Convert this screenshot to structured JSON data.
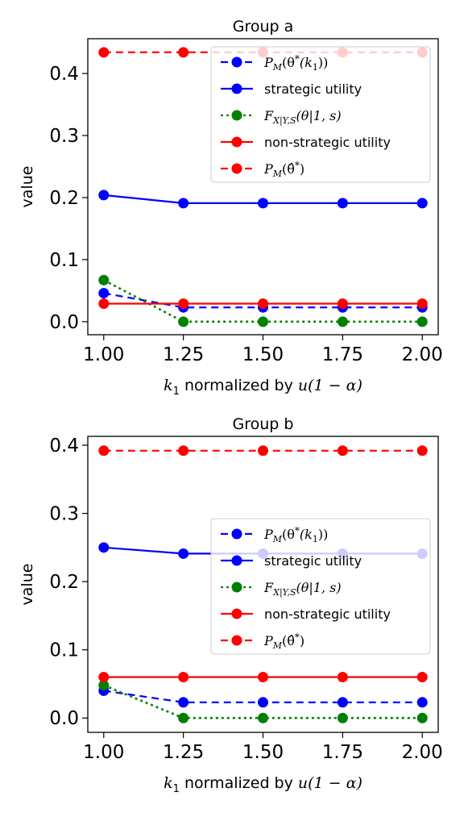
{
  "chart_data": [
    {
      "type": "line",
      "title": "Group a",
      "xlabel_prefix": "k",
      "xlabel_sub": "1",
      "xlabel_text": " normalized by ",
      "xlabel_math": "u(1 − α)",
      "ylabel": "value",
      "x": [
        1.0,
        1.25,
        1.5,
        1.75,
        2.0
      ],
      "x_tick_labels": [
        "1.00",
        "1.25",
        "1.50",
        "1.75",
        "2.00"
      ],
      "y_ticks": [
        0.0,
        0.1,
        0.2,
        0.3,
        0.4
      ],
      "y_tick_labels": [
        "0.0",
        "0.1",
        "0.2",
        "0.3",
        "0.4"
      ],
      "xlim": [
        0.95,
        2.05
      ],
      "ylim": [
        -0.021,
        0.456
      ],
      "legend_position": "upper-right",
      "series": [
        {
          "name": "P_M(θ*(k1))",
          "color": "#0000ff",
          "style": "dashed",
          "values": [
            0.046,
            0.023,
            0.023,
            0.023,
            0.023
          ]
        },
        {
          "name": "strategic utility",
          "color": "#0000ff",
          "style": "solid",
          "values": [
            0.204,
            0.191,
            0.191,
            0.191,
            0.191
          ]
        },
        {
          "name": "F_X|Y,S(θ|1,s)",
          "color": "#008000",
          "style": "dotted",
          "values": [
            0.067,
            0.0,
            0.0,
            0.0,
            0.0
          ]
        },
        {
          "name": "non-strategic utility",
          "color": "#ff0000",
          "style": "solid",
          "values": [
            0.029,
            0.029,
            0.029,
            0.029,
            0.029
          ]
        },
        {
          "name": "P_M(θ̂*)",
          "color": "#ff0000",
          "style": "dashed",
          "values": [
            0.434,
            0.434,
            0.434,
            0.434,
            0.434
          ]
        }
      ]
    },
    {
      "type": "line",
      "title": "Group b",
      "xlabel_prefix": "k",
      "xlabel_sub": "1",
      "xlabel_text": " normalized by ",
      "xlabel_math": "u(1 − α)",
      "ylabel": "value",
      "x": [
        1.0,
        1.25,
        1.5,
        1.75,
        2.0
      ],
      "x_tick_labels": [
        "1.00",
        "1.25",
        "1.50",
        "1.75",
        "2.00"
      ],
      "y_ticks": [
        0.0,
        0.1,
        0.2,
        0.3,
        0.4
      ],
      "y_tick_labels": [
        "0.0",
        "0.1",
        "0.2",
        "0.3",
        "0.4"
      ],
      "xlim": [
        0.95,
        2.05
      ],
      "ylim": [
        -0.021,
        0.413
      ],
      "legend_position": "center-right",
      "series": [
        {
          "name": "P_M(θ*(k1))",
          "color": "#0000ff",
          "style": "dashed",
          "values": [
            0.04,
            0.023,
            0.023,
            0.023,
            0.023
          ]
        },
        {
          "name": "strategic utility",
          "color": "#0000ff",
          "style": "solid",
          "values": [
            0.25,
            0.241,
            0.241,
            0.241,
            0.241
          ]
        },
        {
          "name": "F_X|Y,S(θ|1,s)",
          "color": "#008000",
          "style": "dotted",
          "values": [
            0.048,
            0.0,
            0.0,
            0.0,
            0.0
          ]
        },
        {
          "name": "non-strategic utility",
          "color": "#ff0000",
          "style": "solid",
          "values": [
            0.06,
            0.06,
            0.06,
            0.06,
            0.06
          ]
        },
        {
          "name": "P_M(θ̂*)",
          "color": "#ff0000",
          "style": "dashed",
          "values": [
            0.392,
            0.392,
            0.392,
            0.392,
            0.392
          ]
        }
      ]
    }
  ]
}
